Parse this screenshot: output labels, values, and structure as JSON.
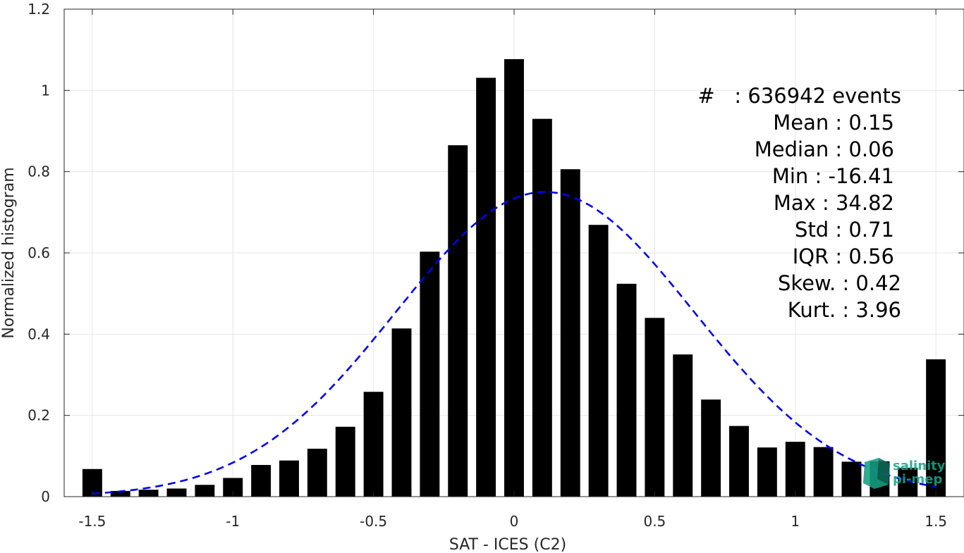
{
  "chart_data": {
    "type": "bar",
    "xlabel": "SAT - ICES (C2)",
    "ylabel": "Normalized histogram",
    "xlim": [
      -1.6,
      1.6
    ],
    "ylim": [
      0,
      1.2
    ],
    "xticks": [
      -1.5,
      -1,
      -0.5,
      0,
      0.5,
      1,
      1.5
    ],
    "xtick_labels": [
      "-1.5",
      "-1",
      "-0.5",
      "0",
      "0.5",
      "1",
      "1.5"
    ],
    "yticks": [
      0,
      0.2,
      0.4,
      0.6,
      0.8,
      1,
      1.2
    ],
    "ytick_labels": [
      "0",
      "0.2",
      "0.4",
      "0.6",
      "0.8",
      "1",
      "1.2"
    ],
    "grid": true,
    "bar_color": "#000000",
    "fit_color": "#0000ee",
    "bar_width": 0.07,
    "x": [
      -1.5,
      -1.4,
      -1.3,
      -1.2,
      -1.1,
      -1.0,
      -0.9,
      -0.8,
      -0.7,
      -0.6,
      -0.5,
      -0.4,
      -0.3,
      -0.2,
      -0.1,
      0.0,
      0.1,
      0.2,
      0.3,
      0.4,
      0.5,
      0.6,
      0.7,
      0.8,
      0.9,
      1.0,
      1.1,
      1.2,
      1.3,
      1.4,
      1.5
    ],
    "values": [
      0.068,
      0.014,
      0.017,
      0.02,
      0.029,
      0.046,
      0.078,
      0.089,
      0.118,
      0.172,
      0.258,
      0.414,
      0.603,
      0.865,
      1.031,
      1.077,
      0.93,
      0.806,
      0.669,
      0.524,
      0.44,
      0.35,
      0.239,
      0.174,
      0.121,
      0.135,
      0.122,
      0.086,
      0.087,
      0.071,
      0.338
    ],
    "fit": {
      "type": "normal",
      "mean": 0.11,
      "std": 0.53,
      "peak": 0.75,
      "x_range": [
        -1.5,
        1.5
      ]
    },
    "annotations": [
      "#   : 636942 events",
      "Mean : 0.15",
      "Median : 0.06",
      "Min : -16.41",
      "Max : 34.82",
      "Std : 0.71",
      "IQR : 0.56",
      "Skew. : 0.42",
      "Kurt. : 3.96"
    ]
  },
  "logo": {
    "line1": "salinity",
    "line2": "pi-mep",
    "color": "#17a589"
  }
}
